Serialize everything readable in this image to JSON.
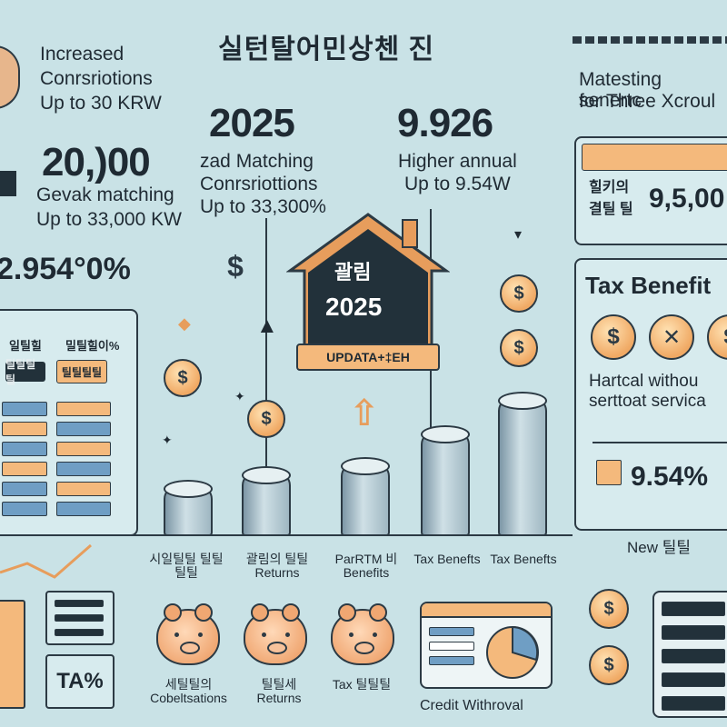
{
  "title": "실턴탈어민상첸 진",
  "left": {
    "line1": "Increased",
    "line2": "Conrsriotions",
    "line3": "Up to 30 KRW",
    "big_value": "20,)00",
    "sub1": "Gevak matching",
    "sub2": "Up to 33,000 KW",
    "percent": "2.954°0%",
    "table_header_a": "일틸힐",
    "table_header_b": "밀틸힐이%",
    "badge_a": "틸틸틸틸",
    "badge_b": "틸틸틸틸",
    "tax_card": "TA%"
  },
  "center": {
    "year": "2025",
    "year_sub1": "zad Matching",
    "year_sub2": "Conrsriottions",
    "year_sub3": "Up to 33,300%",
    "value2": "9.926",
    "value2_sub1": "Higher annual",
    "value2_sub2": "Up to 9.54W",
    "house_text": "괄림",
    "house_year": "2025",
    "update_label": "UPDATA+‡EH",
    "col_labels": [
      "시일틸틸 틸틸틸틸",
      "괄림의 틸틸Returns",
      "ParRTM 비 Benefits",
      "Tax Benefts",
      "Tax Benefts"
    ],
    "bottom_labels": [
      "세틸틸의 Cobeltsations",
      "틸틸세 Returns",
      "Tax 틸틸틸"
    ],
    "credit_label": "Credit Withroval"
  },
  "right": {
    "header1": "Matesting senertc",
    "header2": "for Three Xcroul",
    "card_label1": "힐키의",
    "card_label2": "결틸 틸",
    "card_value": "9,5,00",
    "tax_title": "Tax Benefit",
    "partial1": "Hartcal withou",
    "partial2": "serttoat servica",
    "percent": "9.54%",
    "new_label": "New 틸틸"
  },
  "colors": {
    "background": "#c9e2e6",
    "accent_orange": "#f4b97c",
    "dark": "#22313a",
    "blue": "#6f9ec4"
  },
  "icons": [
    "dollar-icon",
    "house-icon",
    "piggy-bank-icon",
    "arrow-up-icon",
    "sparkle-icon",
    "pie-chart-icon"
  ]
}
